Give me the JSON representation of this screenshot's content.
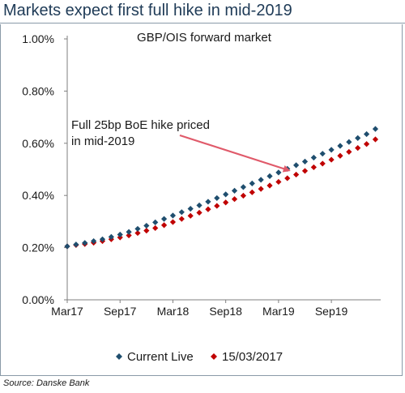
{
  "page": {
    "title": "Markets expect first full hike in mid-2019",
    "source": "Source: Danske Bank"
  },
  "chart_data": {
    "type": "scatter",
    "title": "GBP/OIS forward market",
    "xlabel": "",
    "ylabel": "",
    "x_tick_labels": [
      "Mar17",
      "Sep17",
      "Mar18",
      "Sep18",
      "Mar19",
      "Sep19"
    ],
    "y_tick_labels": [
      "0.00%",
      "0.20%",
      "0.40%",
      "0.60%",
      "0.80%",
      "1.00%"
    ],
    "y_ticks": [
      0,
      0.2,
      0.4,
      0.6,
      0.8,
      1.0
    ],
    "ylim": [
      0,
      1.0
    ],
    "x_month_range": [
      0,
      36
    ],
    "grid": false,
    "legend_position": "bottom",
    "annotation": {
      "lines": [
        "Full 25bp BoE hike priced",
        "in mid-2019"
      ],
      "arrow_color": "#e05a6a",
      "points_to": {
        "x_month": 25,
        "y": 0.5
      }
    },
    "series": [
      {
        "name": "Current Live",
        "color": "#1f4e6e",
        "marker": "diamond",
        "x_months": [
          0,
          1,
          2,
          3,
          4,
          5,
          6,
          7,
          8,
          9,
          10,
          11,
          12,
          13,
          14,
          15,
          16,
          17,
          18,
          19,
          20,
          21,
          22,
          23,
          24,
          25,
          26,
          27,
          28,
          29,
          30,
          31,
          32,
          33,
          34,
          35
        ],
        "values": [
          0.205,
          0.212,
          0.218,
          0.225,
          0.232,
          0.241,
          0.25,
          0.26,
          0.272,
          0.284,
          0.297,
          0.31,
          0.323,
          0.336,
          0.349,
          0.362,
          0.376,
          0.39,
          0.404,
          0.418,
          0.432,
          0.446,
          0.46,
          0.474,
          0.488,
          0.502,
          0.516,
          0.53,
          0.545,
          0.56,
          0.575,
          0.59,
          0.605,
          0.62,
          0.635,
          0.655
        ]
      },
      {
        "name": "15/03/2017",
        "color": "#c00000",
        "marker": "diamond",
        "x_months": [
          0,
          1,
          2,
          3,
          4,
          5,
          6,
          7,
          8,
          9,
          10,
          11,
          12,
          13,
          14,
          15,
          16,
          17,
          18,
          19,
          20,
          21,
          22,
          23,
          24,
          25,
          26,
          27,
          28,
          29,
          30,
          31,
          32,
          33,
          34,
          35
        ],
        "values": [
          0.205,
          0.21,
          0.214,
          0.219,
          0.225,
          0.232,
          0.239,
          0.247,
          0.256,
          0.265,
          0.275,
          0.286,
          0.298,
          0.31,
          0.322,
          0.334,
          0.347,
          0.36,
          0.373,
          0.386,
          0.399,
          0.412,
          0.425,
          0.438,
          0.452,
          0.466,
          0.48,
          0.494,
          0.508,
          0.522,
          0.537,
          0.552,
          0.567,
          0.582,
          0.597,
          0.615
        ]
      }
    ]
  }
}
